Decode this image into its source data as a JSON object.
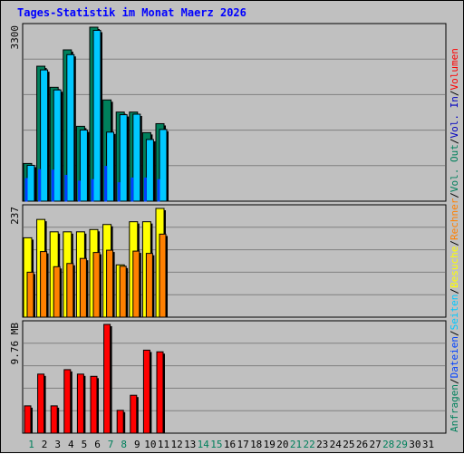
{
  "title": "Tages-Statistik im Monat Maerz 2026",
  "colors": {
    "background": "#c0c0c0",
    "title": "#0000ff",
    "gridline": "#808080",
    "anfragen": "#00805c",
    "dateien": "#0040ff",
    "seiten": "#00c8ff",
    "besuche": "#ffff00",
    "rechner": "#ff8000",
    "volumen": "#ff0000",
    "vol_in": "#0000c0",
    "vol_out": "#00805c",
    "day_weekend": "#00805c",
    "day_weekday": "#000000"
  },
  "right_legend": {
    "hits": [
      {
        "text": "Anfragen",
        "color": "#00805c"
      },
      {
        "text": "/",
        "color": "#000000"
      },
      {
        "text": "Dateien",
        "color": "#0040ff"
      },
      {
        "text": "/",
        "color": "#000000"
      },
      {
        "text": "Seiten",
        "color": "#00c8ff"
      },
      {
        "text": "/",
        "color": "#000000"
      },
      {
        "text": "Besuche",
        "color": "#ffff00"
      },
      {
        "text": "/",
        "color": "#000000"
      },
      {
        "text": "Rechner",
        "color": "#ff8000"
      },
      {
        "text": "/",
        "color": "#000000"
      },
      {
        "text": "Vol. Out",
        "color": "#00805c"
      },
      {
        "text": "/",
        "color": "#000000"
      },
      {
        "text": "Vol. In",
        "color": "#0000c0"
      },
      {
        "text": "/",
        "color": "#000000"
      },
      {
        "text": "Volumen",
        "color": "#ff0000"
      }
    ]
  },
  "chart_data": [
    {
      "type": "bar",
      "panel": "hits",
      "ytick_label": "3300",
      "ylim": [
        0,
        3300
      ],
      "categories": [
        "1",
        "2",
        "3",
        "4",
        "5",
        "6",
        "7",
        "8",
        "9",
        "10",
        "11",
        "12",
        "13",
        "14",
        "15",
        "16",
        "17",
        "18",
        "19",
        "20",
        "21",
        "22",
        "23",
        "24",
        "25",
        "26",
        "27",
        "28",
        "29",
        "30",
        "31"
      ],
      "weekend_days": [
        "1",
        "7",
        "8",
        "14",
        "15",
        "21",
        "22",
        "28",
        "29"
      ],
      "series": [
        {
          "name": "Anfragen",
          "values": [
            715,
            2560,
            2160,
            2870,
            1420,
            3300,
            1920,
            1690,
            1690,
            1300,
            1470,
            null,
            null,
            null,
            null,
            null,
            null,
            null,
            null,
            null,
            null,
            null,
            null,
            null,
            null,
            null,
            null,
            null,
            null,
            null,
            null
          ]
        },
        {
          "name": "Dateien",
          "values": [
            430,
            600,
            590,
            490,
            380,
            410,
            660,
            350,
            440,
            440,
            410,
            null,
            null,
            null,
            null,
            null,
            null,
            null,
            null,
            null,
            null,
            null,
            null,
            null,
            null,
            null,
            null,
            null,
            null,
            null,
            null
          ]
        },
        {
          "name": "Seiten",
          "values": [
            680,
            2490,
            2110,
            2780,
            1350,
            3240,
            1310,
            1640,
            1650,
            1170,
            1360,
            null,
            null,
            null,
            null,
            null,
            null,
            null,
            null,
            null,
            null,
            null,
            null,
            null,
            null,
            null,
            null,
            null,
            null,
            null,
            null
          ]
        }
      ]
    },
    {
      "type": "bar",
      "panel": "visits",
      "ytick_label": "237",
      "ylim": [
        0,
        237
      ],
      "categories": [
        "1",
        "2",
        "3",
        "4",
        "5",
        "6",
        "7",
        "8",
        "9",
        "10",
        "11",
        "12",
        "13",
        "14",
        "15",
        "16",
        "17",
        "18",
        "19",
        "20",
        "21",
        "22",
        "23",
        "24",
        "25",
        "26",
        "27",
        "28",
        "29",
        "30",
        "31"
      ],
      "series": [
        {
          "name": "Besuche",
          "values": [
            173,
            213,
            186,
            186,
            186,
            191,
            202,
            114,
            208,
            208,
            237,
            null,
            null,
            null,
            null,
            null,
            null,
            null,
            null,
            null,
            null,
            null,
            null,
            null,
            null,
            null,
            null,
            null,
            null,
            null,
            null
          ]
        },
        {
          "name": "Rechner",
          "values": [
            98,
            143,
            110,
            117,
            128,
            141,
            146,
            111,
            144,
            139,
            181,
            null,
            null,
            null,
            null,
            null,
            null,
            null,
            null,
            null,
            null,
            null,
            null,
            null,
            null,
            null,
            null,
            null,
            null,
            null,
            null
          ]
        }
      ]
    },
    {
      "type": "bar",
      "panel": "volume",
      "ytick_label": "9.76 MB",
      "ylim": [
        0,
        9.76
      ],
      "categories": [
        "1",
        "2",
        "3",
        "4",
        "5",
        "6",
        "7",
        "8",
        "9",
        "10",
        "11",
        "12",
        "13",
        "14",
        "15",
        "16",
        "17",
        "18",
        "19",
        "20",
        "21",
        "22",
        "23",
        "24",
        "25",
        "26",
        "27",
        "28",
        "29",
        "30",
        "31"
      ],
      "series": [
        {
          "name": "Volumen",
          "values": [
            2.45,
            5.3,
            2.45,
            5.7,
            5.3,
            5.1,
            9.76,
            2.05,
            3.4,
            7.45,
            7.3,
            null,
            null,
            null,
            null,
            null,
            null,
            null,
            null,
            null,
            null,
            null,
            null,
            null,
            null,
            null,
            null,
            null,
            null,
            null,
            null
          ]
        }
      ]
    }
  ]
}
